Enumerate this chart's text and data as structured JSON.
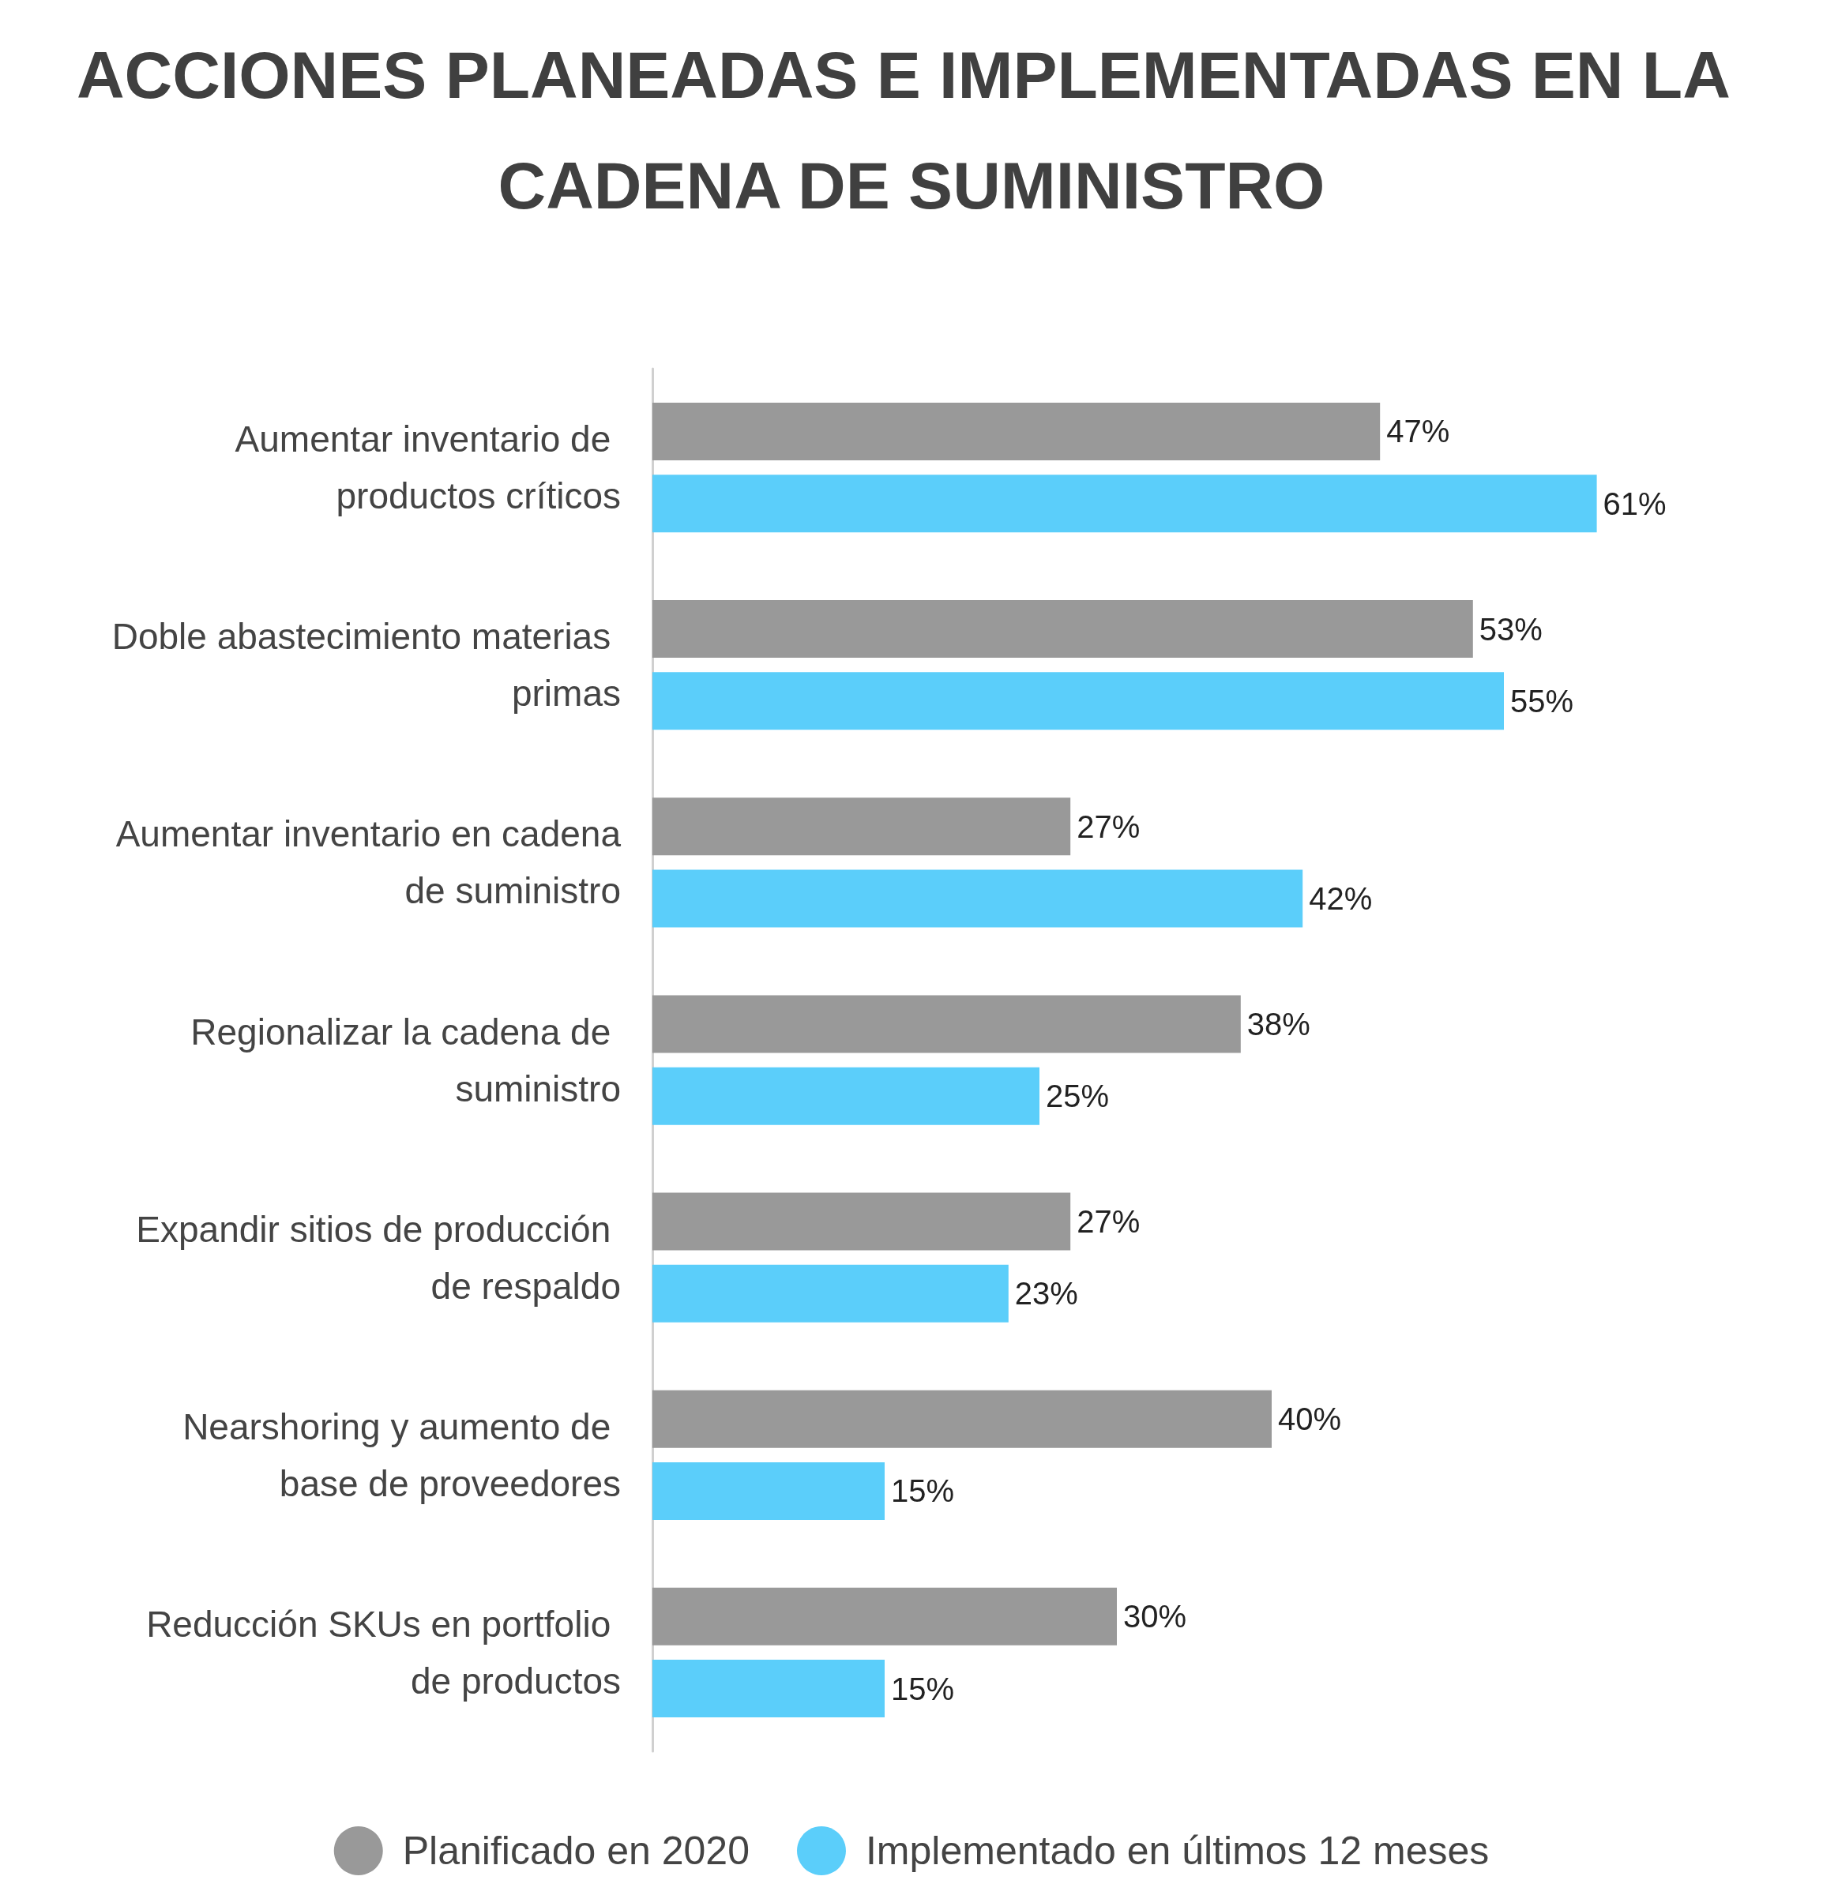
{
  "chart_data": {
    "type": "bar",
    "orientation": "horizontal",
    "title": "ACCIONES PLANEADAS E IMPLEMENTADAS EN LA CADENA DE SUMINISTRO",
    "categories": [
      "Aumentar inventario de productos críticos",
      "Doble abastecimiento materias primas",
      "Aumentar inventario en cadena de suministro",
      "Regionalizar la cadena de suministro",
      "Expandir sitios de producción de respaldo",
      "Nearshoring y aumento de base de proveedores",
      "Reducción SKUs en portfolio de productos"
    ],
    "series": [
      {
        "name": "Planificado en 2020",
        "color": "#999999",
        "values": [
          47,
          53,
          27,
          38,
          27,
          40,
          30
        ],
        "value_labels": [
          "47%",
          "53%",
          "27%",
          "38%",
          "27%",
          "40%",
          "30%"
        ]
      },
      {
        "name": "Implementado en últimos 12 meses",
        "color": "#5bcefa",
        "values": [
          61,
          55,
          42,
          25,
          23,
          15,
          15
        ],
        "value_labels": [
          "61%",
          "55%",
          "42%",
          "25%",
          "23%",
          "15%",
          "15%"
        ]
      }
    ],
    "legend": "bottom",
    "tick_labels": "y"
  }
}
